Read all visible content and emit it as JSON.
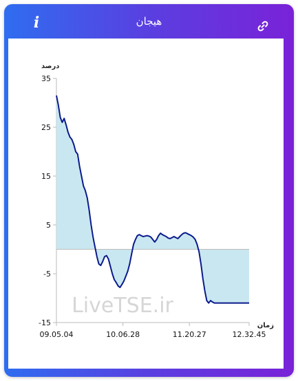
{
  "header": {
    "title": "هیجان",
    "info_icon": "info-icon",
    "link_icon": "link-icon",
    "info_glyph": "i"
  },
  "colors": {
    "line": "#0a1a8c",
    "fill": "#c9e7f0",
    "axis": "#bbbbbb"
  },
  "chart_data": {
    "type": "area",
    "ylabel": "درصد",
    "xlabel": "زمان",
    "ylim": [
      -15,
      35
    ],
    "yticks": [
      35,
      25,
      15,
      5,
      -5,
      -15
    ],
    "xticks": [
      "09.05.04",
      "10.06.28",
      "11.20.27",
      "12.32.45"
    ],
    "xtick_positions": [
      0,
      0.345,
      0.69,
      1.0
    ],
    "watermark": "LiveTSE.ir",
    "baseline": 0,
    "series": [
      {
        "x": [
          0,
          0.01,
          0.02,
          0.03,
          0.04,
          0.05,
          0.06,
          0.07,
          0.08,
          0.09,
          0.1,
          0.11,
          0.12,
          0.13,
          0.14,
          0.15,
          0.16,
          0.17,
          0.18,
          0.19,
          0.2,
          0.21,
          0.22,
          0.23,
          0.24,
          0.25,
          0.26,
          0.27,
          0.28,
          0.29,
          0.3,
          0.31,
          0.32,
          0.33,
          0.34,
          0.35,
          0.36,
          0.37,
          0.38,
          0.39,
          0.4,
          0.41,
          0.42,
          0.43,
          0.44,
          0.45,
          0.46,
          0.47,
          0.48,
          0.49,
          0.5,
          0.51,
          0.52,
          0.53,
          0.54,
          0.55,
          0.56,
          0.57,
          0.58,
          0.59,
          0.6,
          0.61,
          0.62,
          0.63,
          0.64,
          0.65,
          0.66,
          0.67,
          0.68,
          0.69,
          0.7,
          0.71,
          0.72,
          0.73,
          0.74,
          0.75,
          0.76,
          0.77,
          0.78,
          0.79,
          0.8,
          0.81,
          0.82,
          0.83,
          0.84,
          0.85,
          0.86,
          0.87,
          0.88,
          0.89,
          0.9,
          0.91,
          0.92,
          0.93,
          0.94,
          0.95,
          0.96,
          0.97,
          0.98,
          0.99,
          1.0
        ],
        "values": [
          31.5,
          29.5,
          27.0,
          26.0,
          26.8,
          25.5,
          24.0,
          23.0,
          22.5,
          21.5,
          20.0,
          19.5,
          17.0,
          15.0,
          13.0,
          12.0,
          10.5,
          8.0,
          5.0,
          2.5,
          0.5,
          -1.5,
          -3.0,
          -3.3,
          -2.5,
          -1.5,
          -1.3,
          -2.0,
          -3.5,
          -5.0,
          -6.2,
          -6.8,
          -7.5,
          -7.8,
          -7.2,
          -6.5,
          -5.5,
          -4.5,
          -3.0,
          -1.0,
          1.0,
          2.0,
          2.8,
          3.0,
          2.8,
          2.6,
          2.7,
          2.8,
          2.7,
          2.5,
          2.0,
          1.5,
          2.0,
          2.8,
          3.3,
          3.0,
          2.8,
          2.6,
          2.3,
          2.2,
          2.4,
          2.6,
          2.4,
          2.2,
          2.6,
          3.0,
          3.3,
          3.4,
          3.2,
          3.0,
          2.8,
          2.5,
          2.0,
          1.0,
          -0.5,
          -3.0,
          -6.0,
          -8.5,
          -10.5,
          -11.0,
          -10.5,
          -10.8,
          -11.0,
          -11.0,
          -11.0,
          -11.0,
          -11.0,
          -11.0,
          -11.0,
          -11.0,
          -11.0,
          -11.0,
          -11.0,
          -11.0,
          -11.0,
          -11.0,
          -11.0,
          -11.0,
          -11.0,
          -11.0,
          -11.0
        ]
      }
    ]
  }
}
